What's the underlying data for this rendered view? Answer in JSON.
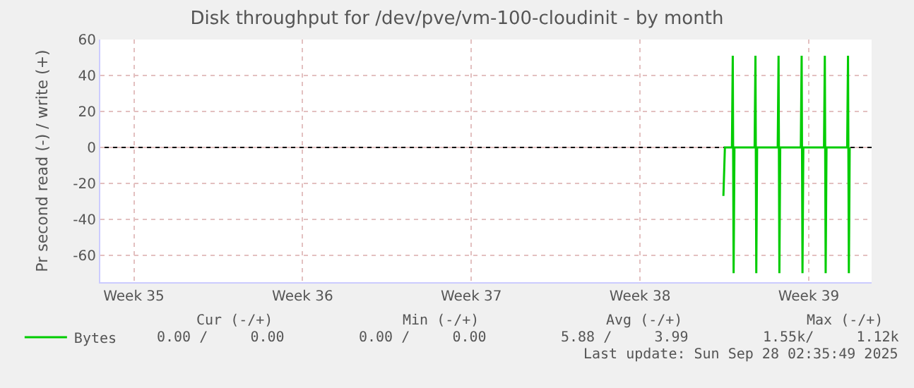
{
  "chart_data": {
    "type": "line",
    "title": "Disk throughput for /dev/pve/vm-100-cloudinit - by month",
    "ylabel": "Pr second read (-) / write (+)",
    "x": [
      "2025-09-21T23:00",
      "2025-09-22T00:30",
      "2025-09-22T07:30",
      "2025-09-22T08:20",
      "2025-09-22T09:10",
      "2025-09-22T10:00",
      "2025-09-23T06:05",
      "2025-09-23T06:55",
      "2025-09-23T07:45",
      "2025-09-23T08:35",
      "2025-09-24T05:05",
      "2025-09-24T05:55",
      "2025-09-24T06:45",
      "2025-09-24T07:35",
      "2025-09-25T04:05",
      "2025-09-25T04:55",
      "2025-09-25T05:45",
      "2025-09-25T06:35",
      "2025-09-26T03:10",
      "2025-09-26T04:00",
      "2025-09-26T04:50",
      "2025-09-26T05:40",
      "2025-09-27T02:15",
      "2025-09-27T03:05",
      "2025-09-27T03:55",
      "2025-09-27T04:45"
    ],
    "series": [
      {
        "name": "Bytes",
        "color": "#00cc00",
        "values": [
          -27,
          0,
          0,
          51,
          -70,
          0,
          0,
          51,
          -70,
          0,
          0,
          51,
          -70,
          0,
          0,
          51,
          -70,
          0,
          0,
          51,
          -70,
          0,
          0,
          51,
          -70,
          0
        ]
      }
    ],
    "xlim": [
      "2025-08-27T02:35",
      "2025-09-28T02:35"
    ],
    "xticks": [
      {
        "value": "2025-08-28T12:00",
        "label": "Week 35"
      },
      {
        "value": "2025-09-04T12:00",
        "label": "Week 36"
      },
      {
        "value": "2025-09-11T12:00",
        "label": "Week 37"
      },
      {
        "value": "2025-09-18T12:00",
        "label": "Week 38"
      },
      {
        "value": "2025-09-25T12:00",
        "label": "Week 39"
      }
    ],
    "ylim": [
      -75,
      60
    ],
    "yticks": [
      -60,
      -40,
      -20,
      0,
      20,
      40,
      60
    ],
    "ref_lines": [
      {
        "axis": "y",
        "value": 0,
        "color": "#000000"
      }
    ],
    "grid": true,
    "legend": "bottom left",
    "marker": "none",
    "line_style": "solid",
    "annotations": [
      "Cur (-/+)",
      "Min (-/+)",
      "Avg (-/+)",
      "Max (-/+)",
      "0.00 /     0.00",
      "0.00 /     0.00",
      "5.88 /     3.99",
      "1.55k/     1.12k",
      "Last update: Sun Sep 28 02:35:49 2025"
    ]
  }
}
